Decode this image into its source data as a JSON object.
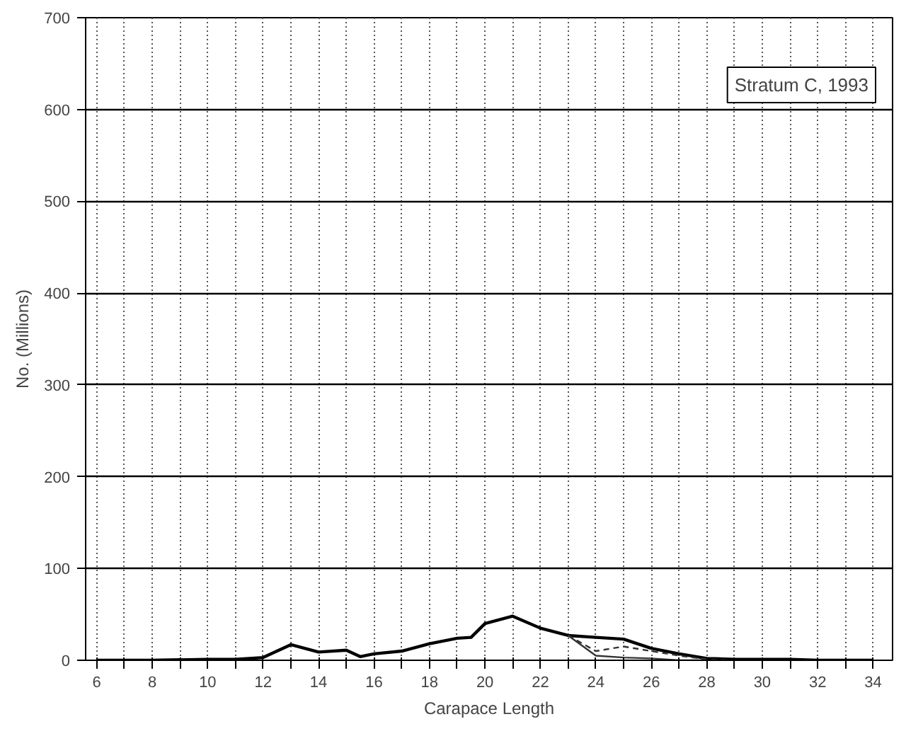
{
  "chart_data": {
    "type": "line",
    "xlabel": "Carapace Length",
    "ylabel": "No. (Millions)",
    "annotations": [
      "Stratum C, 1993"
    ],
    "xlim": [
      5.6,
      34.7
    ],
    "ylim": [
      0,
      700
    ],
    "xticks": [
      6,
      {
        "value": 7,
        "label": null
      },
      8,
      {
        "value": 9,
        "label": null
      },
      10,
      {
        "value": 11,
        "label": null
      },
      12,
      {
        "value": 13,
        "label": null
      },
      14,
      {
        "value": 15,
        "label": null
      },
      16,
      {
        "value": 17,
        "label": null
      },
      18,
      {
        "value": 19,
        "label": null
      },
      20,
      {
        "value": 21,
        "label": null
      },
      22,
      {
        "value": 23,
        "label": null
      },
      24,
      {
        "value": 25,
        "label": null
      },
      26,
      {
        "value": 27,
        "label": null
      },
      28,
      {
        "value": 29,
        "label": null
      },
      30,
      {
        "value": 31,
        "label": null
      },
      32,
      {
        "value": 33,
        "label": null
      },
      34
    ],
    "yticks": [
      0,
      100,
      200,
      300,
      400,
      500,
      600,
      700
    ],
    "grid": true,
    "marker": "none",
    "series": [
      {
        "color": "#000000",
        "line_style": "solid",
        "x": [
          6,
          8,
          10,
          11,
          12,
          13,
          14,
          15,
          15.5,
          16,
          17,
          18,
          19,
          19.5,
          20,
          21,
          22,
          23,
          24,
          25,
          26,
          27,
          28,
          29,
          30,
          31,
          32,
          33,
          34
        ],
        "values": [
          0,
          0,
          1,
          1,
          3,
          17,
          9,
          11,
          4,
          7,
          10,
          18,
          24,
          25,
          40,
          48,
          35,
          27,
          25,
          23,
          13,
          7,
          2,
          1,
          1,
          1,
          0,
          0,
          0
        ]
      },
      {
        "color": "#333333",
        "line_style": "dashed",
        "x": [
          23,
          24,
          25,
          26,
          27,
          28,
          29
        ],
        "values": [
          27,
          10,
          15,
          10,
          5,
          1,
          0
        ]
      },
      {
        "color": "#333333",
        "line_style": "solid",
        "x": [
          23,
          24,
          25,
          26,
          27,
          28
        ],
        "values": [
          27,
          5,
          3,
          2,
          0,
          0
        ]
      }
    ]
  }
}
